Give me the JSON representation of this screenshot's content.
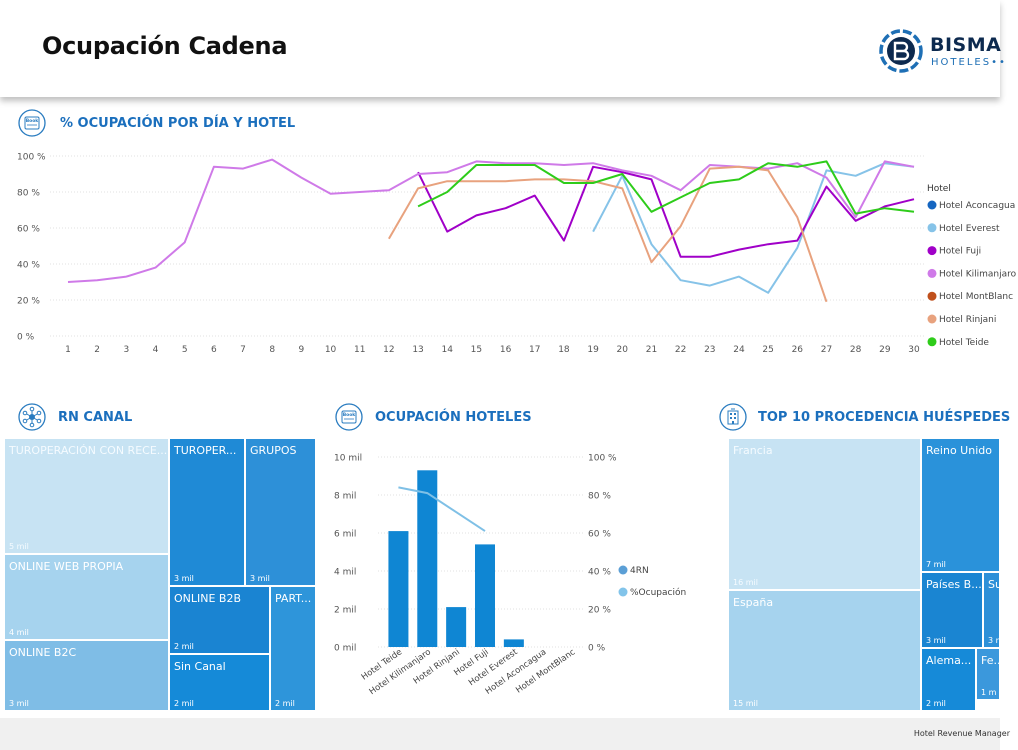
{
  "header": {
    "title": "Ocupación Cadena",
    "logo_word": "BISMA",
    "logo_sub": "HOTELES",
    "logo_sub_dots": "••"
  },
  "sections": {
    "line_title": "% OCUPACIÓN POR DÍA Y HOTEL",
    "canal_title": "RN CANAL",
    "hoteles_title": "OCUPACIÓN HOTELES",
    "procedencia_title": "TOP 10 PROCEDENCIA HUÉSPEDES"
  },
  "icons": {
    "book": "Book",
    "line": "book-icon",
    "canal": "network-icon",
    "hoteles": "book-icon",
    "procedencia": "building-icon"
  },
  "colors": {
    "accent": "#1b6fbd",
    "Hotel Aconcagua": "#1565c0",
    "Hotel Everest": "#86c3e8",
    "Hotel Fuji": "#a000c8",
    "Hotel Kilimanjaro": "#cf7ae8",
    "Hotel MontBlanc": "#c0501c",
    "Hotel Rinjani": "#e8a27e",
    "Hotel Teide": "#2ecc1a",
    "bar": "#0f86d3",
    "ocup_line": "#7fc0e6"
  },
  "chart_data": [
    {
      "type": "line",
      "title": "% OCUPACIÓN POR DÍA Y HOTEL",
      "x": [
        1,
        2,
        3,
        4,
        5,
        6,
        7,
        8,
        9,
        10,
        11,
        12,
        13,
        14,
        15,
        16,
        17,
        18,
        19,
        20,
        21,
        22,
        23,
        24,
        25,
        26,
        27,
        28,
        29,
        30
      ],
      "y_ticks": [
        "100 %",
        "80 %",
        "60 %",
        "40 %",
        "20 %",
        "0 %"
      ],
      "ylim": [
        0,
        100
      ],
      "legend_title": "Hotel",
      "legend_position": "right",
      "legend": [
        "Hotel Aconcagua",
        "Hotel Everest",
        "Hotel Fuji",
        "Hotel Kilimanjaro",
        "Hotel MontBlanc",
        "Hotel Rinjani",
        "Hotel Teide"
      ],
      "legend_labels": [
        "Hotel Aconcagua",
        "Hotel Everest",
        "Hotel Fuji",
        "Hotel Kilimanjaro",
        "Hotel MontBlanc",
        "Hotel Rinjani",
        "Hotel Teide"
      ],
      "series": [
        {
          "name": "Hotel Everest",
          "x": [
            19,
            20,
            21,
            22,
            23,
            24,
            25,
            26,
            27,
            28,
            29,
            30
          ],
          "y": [
            58,
            89,
            51,
            31,
            28,
            33,
            24,
            49,
            92,
            89,
            96,
            94
          ]
        },
        {
          "name": "Hotel Fuji",
          "x": [
            13,
            14,
            15,
            16,
            17,
            18,
            19,
            20,
            21,
            22,
            23,
            24,
            25,
            26,
            27,
            28,
            29,
            30
          ],
          "y": [
            91,
            58,
            67,
            71,
            78,
            53,
            94,
            91,
            87,
            44,
            44,
            48,
            51,
            53,
            83,
            64,
            72,
            76
          ]
        },
        {
          "name": "Hotel Kilimanjaro",
          "x": [
            1,
            2,
            3,
            4,
            5,
            6,
            7,
            8,
            9,
            10,
            11,
            12,
            13,
            14,
            15,
            16,
            17,
            18,
            19,
            20,
            21,
            22,
            23,
            24,
            25,
            26,
            27,
            28,
            29,
            30
          ],
          "y": [
            30,
            31,
            33,
            38,
            52,
            94,
            93,
            98,
            88,
            79,
            80,
            81,
            90,
            91,
            97,
            96,
            96,
            95,
            96,
            92,
            89,
            81,
            95,
            94,
            93,
            96,
            88,
            66,
            97,
            94
          ]
        },
        {
          "name": "Hotel Rinjani",
          "x": [
            12,
            13,
            14,
            15,
            16,
            17,
            18,
            19,
            20,
            21,
            22,
            23,
            24,
            25,
            26,
            27
          ],
          "y": [
            54,
            82,
            86,
            86,
            86,
            87,
            87,
            86,
            82,
            41,
            61,
            93,
            94,
            92,
            66,
            19
          ]
        },
        {
          "name": "Hotel Teide",
          "x": [
            13,
            14,
            15,
            16,
            17,
            18,
            19,
            20,
            21,
            22,
            23,
            24,
            25,
            26,
            27,
            28,
            29,
            30
          ],
          "y": [
            72,
            80,
            95,
            95,
            95,
            85,
            85,
            90,
            69,
            77,
            85,
            87,
            96,
            94,
            97,
            68,
            71,
            69
          ]
        }
      ]
    },
    {
      "type": "bar",
      "title": "OCUPACIÓN HOTELES",
      "categories": [
        "Hotel Teide",
        "Hotel Kilimanjaro",
        "Hotel Rinjani",
        "Hotel Fuji",
        "Hotel Everest",
        "Hotel Aconcagua",
        "Hotel MontBlanc"
      ],
      "y_ticks_left": [
        "10 mil",
        "8 mil",
        "6 mil",
        "4 mil",
        "2 mil",
        "0 mil"
      ],
      "y_ticks_right": [
        "100 %",
        "80 %",
        "60 %",
        "40 %",
        "20 %",
        "0 %"
      ],
      "ylim": [
        0,
        10000
      ],
      "ylim_right": [
        0,
        100
      ],
      "legend_position": "right",
      "legend": [
        "4RN",
        "%Ocupación"
      ],
      "series": [
        {
          "name": "4RN",
          "values": [
            6100,
            9300,
            2100,
            5400,
            400,
            0,
            0
          ]
        },
        {
          "name": "%Ocupación",
          "values": [
            84,
            81,
            71,
            61,
            null,
            null,
            null
          ]
        }
      ]
    },
    {
      "type": "treemap",
      "title": "RN CANAL",
      "items": [
        {
          "label": "TUROPERACIÓN CON RECE...",
          "value": "5 mil"
        },
        {
          "label": "ONLINE WEB PROPIA",
          "value": "4 mil"
        },
        {
          "label": "ONLINE B2C",
          "value": "3 mil"
        },
        {
          "label": "TUROPER...",
          "value": "3 mil"
        },
        {
          "label": "GRUPOS",
          "value": "3 mil"
        },
        {
          "label": "ONLINE B2B",
          "value": "2 mil"
        },
        {
          "label": "PART...",
          "value": "2 mil"
        },
        {
          "label": "Sin Canal",
          "value": "2 mil"
        }
      ]
    },
    {
      "type": "treemap",
      "title": "TOP 10 PROCEDENCIA HUÉSPEDES",
      "items": [
        {
          "label": "Francia",
          "value": "16 mil"
        },
        {
          "label": "España",
          "value": "15 mil"
        },
        {
          "label": "Reino Unido",
          "value": "7 mil"
        },
        {
          "label": "Países B...",
          "value": "3 mil"
        },
        {
          "label": "Su",
          "value": "3 m"
        },
        {
          "label": "Alema...",
          "value": "2 mil"
        },
        {
          "label": "Fe...",
          "value": "1 m"
        }
      ]
    }
  ],
  "footer": {
    "text": "Hotel Revenue Manager"
  }
}
